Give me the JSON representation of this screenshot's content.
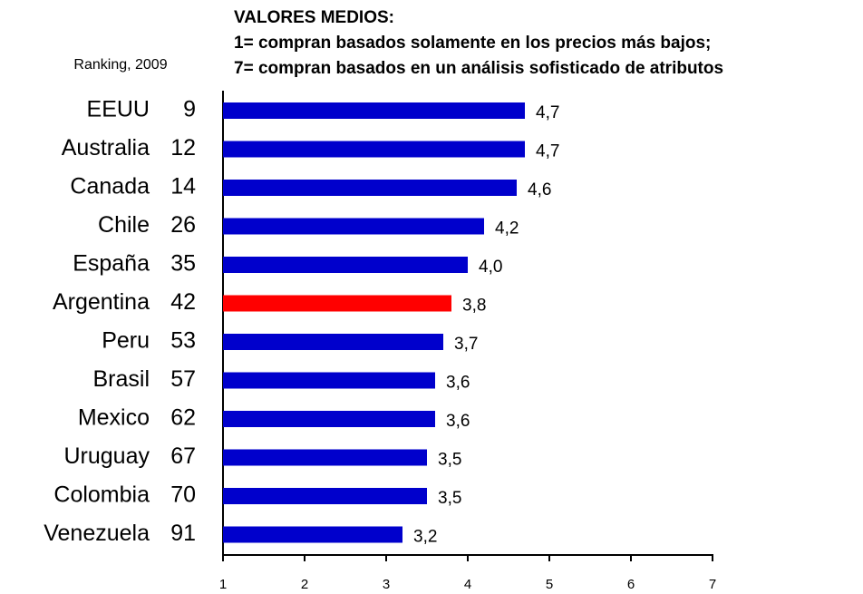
{
  "chart_data": {
    "type": "bar",
    "orientation": "horizontal",
    "title": "VALORES MEDIOS:",
    "subtitle": [
      "1= compran basados solamente en los precios más bajos;",
      "7= compran basados en un análisis sofisticado de atributos"
    ],
    "rank_label": "Ranking, 2009",
    "categories": [
      "EEUU",
      "Australia",
      "Canada",
      "Chile",
      "España",
      "Argentina",
      "Peru",
      "Brasil",
      "Mexico",
      "Uruguay",
      "Colombia",
      "Venezuela"
    ],
    "rankings": [
      9,
      12,
      14,
      26,
      35,
      42,
      53,
      57,
      62,
      67,
      70,
      91
    ],
    "values": [
      4.7,
      4.7,
      4.6,
      4.2,
      4.0,
      3.8,
      3.7,
      3.6,
      3.6,
      3.5,
      3.5,
      3.2
    ],
    "value_labels": [
      "4,7",
      "4,7",
      "4,6",
      "4,2",
      "4,0",
      "3,8",
      "3,7",
      "3,6",
      "3,6",
      "3,5",
      "3,5",
      "3,2"
    ],
    "colors": [
      "#0000cc",
      "#0000cc",
      "#0000cc",
      "#0000cc",
      "#0000cc",
      "#ff0000",
      "#0000cc",
      "#0000cc",
      "#0000cc",
      "#0000cc",
      "#0000cc",
      "#0000cc"
    ],
    "xlim": [
      1,
      7
    ],
    "xticks": [
      1,
      2,
      3,
      4,
      5,
      6,
      7
    ],
    "grid": false
  }
}
